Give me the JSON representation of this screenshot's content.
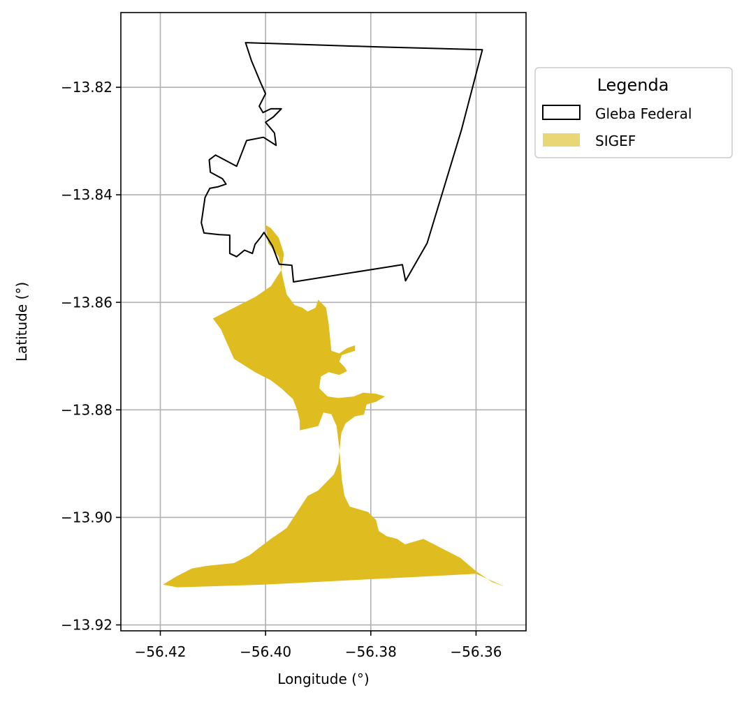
{
  "map": {
    "xlabel": "Longitude (°)",
    "ylabel": "Latitude (°)",
    "x_ticks": [
      {
        "value": -56.42,
        "label": "−56.42"
      },
      {
        "value": -56.4,
        "label": "−56.40"
      },
      {
        "value": -56.38,
        "label": "−56.38"
      },
      {
        "value": -56.36,
        "label": "−56.36"
      }
    ],
    "y_ticks": [
      {
        "value": -13.82,
        "label": "−13.82"
      },
      {
        "value": -13.84,
        "label": "−13.84"
      },
      {
        "value": -13.86,
        "label": "−13.86"
      },
      {
        "value": -13.88,
        "label": "−13.88"
      },
      {
        "value": -13.9,
        "label": "−13.90"
      },
      {
        "value": -13.92,
        "label": "−13.92"
      }
    ],
    "xlim": [
      -56.4275,
      -56.3505
    ],
    "ylim": [
      -13.9211,
      -13.8061
    ],
    "grid": true,
    "legend": {
      "title": "Legenda",
      "position": "outside-right-top",
      "entries": [
        {
          "label": "Gleba Federal",
          "style": "outline",
          "edge_color": "#000000",
          "fill_color": "#ffffff"
        },
        {
          "label": "SIGEF",
          "style": "fill",
          "fill_color": "#e9d677"
        }
      ]
    },
    "colors": {
      "gleba_edge": "#000000",
      "sigef_fill": "#dfbd20",
      "grid": "#b0b0b0"
    },
    "layers": {
      "gleba_federal": [
        [
          -56.4038,
          -13.8117
        ],
        [
          -56.3784,
          -13.8125
        ],
        [
          -56.3588,
          -13.813
        ],
        [
          -56.3628,
          -13.828
        ],
        [
          -56.3693,
          -13.849
        ],
        [
          -56.3734,
          -13.856
        ],
        [
          -56.374,
          -13.853
        ],
        [
          -56.3947,
          -13.8562
        ],
        [
          -56.395,
          -13.8531
        ],
        [
          -56.3974,
          -13.8529
        ],
        [
          -56.3987,
          -13.8495
        ],
        [
          -56.4003,
          -13.847
        ],
        [
          -56.401,
          -13.848
        ],
        [
          -56.402,
          -13.8492
        ],
        [
          -56.4025,
          -13.8509
        ],
        [
          -56.404,
          -13.8503
        ],
        [
          -56.4055,
          -13.8515
        ],
        [
          -56.4068,
          -13.8509
        ],
        [
          -56.4068,
          -13.8475
        ],
        [
          -56.4088,
          -13.8474
        ],
        [
          -56.4117,
          -13.8471
        ],
        [
          -56.4122,
          -13.8452
        ],
        [
          -56.4115,
          -13.8405
        ],
        [
          -56.4106,
          -13.8388
        ],
        [
          -56.409,
          -13.8385
        ],
        [
          -56.4075,
          -13.838
        ],
        [
          -56.4082,
          -13.837
        ],
        [
          -56.4105,
          -13.8358
        ],
        [
          -56.4107,
          -13.8335
        ],
        [
          -56.4095,
          -13.8326
        ],
        [
          -56.4055,
          -13.8347
        ],
        [
          -56.4036,
          -13.8299
        ],
        [
          -56.4004,
          -13.8293
        ],
        [
          -56.398,
          -13.8308
        ],
        [
          -56.3983,
          -13.8285
        ],
        [
          -56.4,
          -13.8265
        ],
        [
          -56.3985,
          -13.8255
        ],
        [
          -56.397,
          -13.824
        ],
        [
          -56.399,
          -13.824
        ],
        [
          -56.4005,
          -13.8247
        ],
        [
          -56.4012,
          -13.8235
        ],
        [
          -56.4,
          -13.8212
        ],
        [
          -56.401,
          -13.819
        ],
        [
          -56.4027,
          -13.815
        ]
      ],
      "sigef": [
        [
          [
            -56.4,
            -13.8456
          ],
          [
            -56.3995,
            -13.849
          ],
          [
            -56.3975,
            -13.8515
          ],
          [
            -56.3968,
            -13.855
          ],
          [
            -56.396,
            -13.8585
          ],
          [
            -56.3945,
            -13.8605
          ],
          [
            -56.393,
            -13.861
          ],
          [
            -56.392,
            -13.8617
          ],
          [
            -56.3905,
            -13.861
          ],
          [
            -56.39,
            -13.8595
          ],
          [
            -56.3885,
            -13.861
          ],
          [
            -56.388,
            -13.864
          ],
          [
            -56.3875,
            -13.869
          ],
          [
            -56.386,
            -13.8695
          ],
          [
            -56.3845,
            -13.8685
          ],
          [
            -56.383,
            -13.868
          ],
          [
            -56.383,
            -13.869
          ],
          [
            -56.3855,
            -13.8698
          ],
          [
            -56.386,
            -13.871
          ],
          [
            -56.385,
            -13.872
          ],
          [
            -56.3845,
            -13.8728
          ],
          [
            -56.386,
            -13.8735
          ],
          [
            -56.388,
            -13.873
          ],
          [
            -56.3895,
            -13.8738
          ],
          [
            -56.3898,
            -13.876
          ],
          [
            -56.3882,
            -13.8775
          ],
          [
            -56.3862,
            -13.8778
          ],
          [
            -56.3832,
            -13.8775
          ],
          [
            -56.3815,
            -13.8768
          ],
          [
            -56.379,
            -13.877
          ],
          [
            -56.3773,
            -13.8775
          ],
          [
            -56.379,
            -13.8785
          ],
          [
            -56.3808,
            -13.879
          ],
          [
            -56.3813,
            -13.8809
          ],
          [
            -56.383,
            -13.8812
          ],
          [
            -56.3848,
            -13.8825
          ],
          [
            -56.3856,
            -13.8843
          ],
          [
            -56.3862,
            -13.89
          ],
          [
            -56.387,
            -13.892
          ],
          [
            -56.39,
            -13.895
          ],
          [
            -56.392,
            -13.896
          ],
          [
            -56.396,
            -13.902
          ],
          [
            -56.399,
            -13.904
          ],
          [
            -56.401,
            -13.9055
          ],
          [
            -56.403,
            -13.907
          ],
          [
            -56.406,
            -13.9085
          ],
          [
            -56.411,
            -13.909
          ],
          [
            -56.414,
            -13.9095
          ],
          [
            -56.417,
            -13.911
          ],
          [
            -56.4195,
            -13.9125
          ],
          [
            -56.4168,
            -13.913
          ],
          [
            -56.41,
            -13.9128
          ],
          [
            -56.4,
            -13.9125
          ],
          [
            -56.39,
            -13.912
          ],
          [
            -56.38,
            -13.9115
          ],
          [
            -56.37,
            -13.911
          ],
          [
            -56.36,
            -13.9105
          ],
          [
            -56.3545,
            -13.9129
          ],
          [
            -56.357,
            -13.912
          ],
          [
            -56.36,
            -13.91
          ],
          [
            -56.363,
            -13.9075
          ],
          [
            -56.366,
            -13.906
          ],
          [
            -56.368,
            -13.905
          ],
          [
            -56.37,
            -13.904
          ],
          [
            -56.3735,
            -13.905
          ],
          [
            -56.375,
            -13.904
          ],
          [
            -56.377,
            -13.9035
          ],
          [
            -56.3785,
            -13.9025
          ],
          [
            -56.379,
            -13.9005
          ],
          [
            -56.3805,
            -13.899
          ],
          [
            -56.384,
            -13.898
          ],
          [
            -56.385,
            -13.896
          ],
          [
            -56.3855,
            -13.893
          ],
          [
            -56.386,
            -13.887
          ],
          [
            -56.3865,
            -13.883
          ],
          [
            -56.3875,
            -13.8808
          ],
          [
            -56.389,
            -13.8805
          ],
          [
            -56.39,
            -13.883
          ],
          [
            -56.392,
            -13.8835
          ],
          [
            -56.3935,
            -13.8838
          ],
          [
            -56.3935,
            -13.882
          ],
          [
            -56.394,
            -13.88
          ],
          [
            -56.3948,
            -13.878
          ],
          [
            -56.397,
            -13.876
          ],
          [
            -56.399,
            -13.8745
          ],
          [
            -56.402,
            -13.873
          ],
          [
            -56.406,
            -13.8705
          ],
          [
            -56.4085,
            -13.865
          ],
          [
            -56.41,
            -13.863
          ],
          [
            -56.406,
            -13.861
          ],
          [
            -56.402,
            -13.859
          ],
          [
            -56.399,
            -13.857
          ],
          [
            -56.397,
            -13.854
          ],
          [
            -56.3965,
            -13.851
          ],
          [
            -56.3975,
            -13.848
          ],
          [
            -56.399,
            -13.8462
          ]
        ]
      ]
    }
  }
}
